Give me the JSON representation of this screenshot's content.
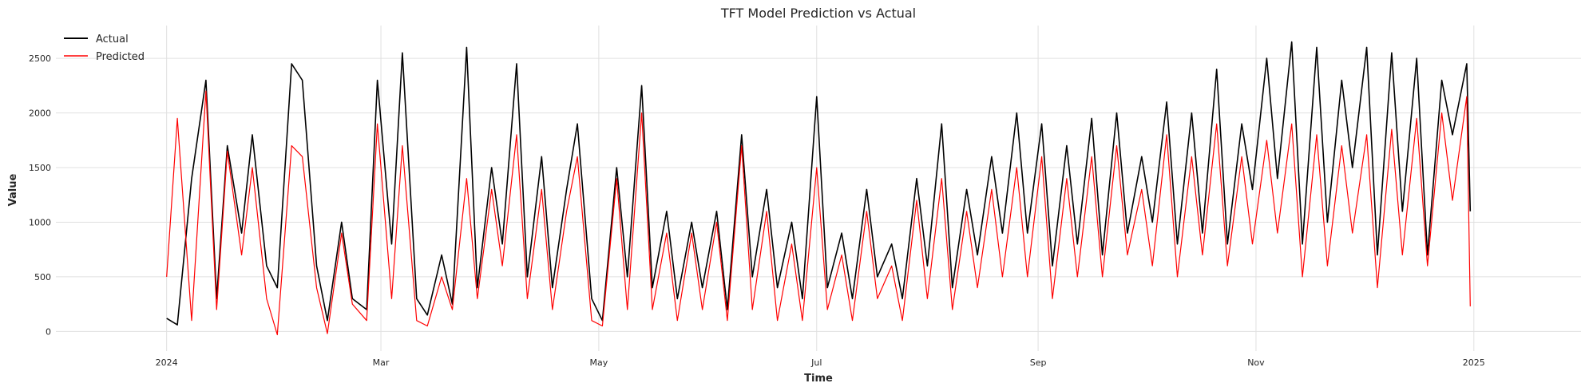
{
  "chart_data": {
    "type": "line",
    "title": "TFT Model Prediction vs Actual",
    "xlabel": "Time",
    "ylabel": "Value",
    "xlim": [
      "2023-12-01",
      "2025-01-31"
    ],
    "ylim": [
      -180,
      2800
    ],
    "grid": true,
    "legend_position": "top-left",
    "x_ticks": [
      {
        "date": "2024-01-01",
        "label": "2024"
      },
      {
        "date": "2024-03-01",
        "label": "Mar"
      },
      {
        "date": "2024-05-01",
        "label": "May"
      },
      {
        "date": "2024-07-01",
        "label": "Jul"
      },
      {
        "date": "2024-09-01",
        "label": "Sep"
      },
      {
        "date": "2024-11-01",
        "label": "Nov"
      },
      {
        "date": "2025-01-01",
        "label": "2025"
      }
    ],
    "y_ticks": [
      0,
      500,
      1000,
      1500,
      2000,
      2500
    ],
    "series": [
      {
        "name": "Actual",
        "color": "#000000",
        "x": [
          "2024-01-01",
          "2024-01-04",
          "2024-01-08",
          "2024-01-12",
          "2024-01-15",
          "2024-01-18",
          "2024-01-22",
          "2024-01-25",
          "2024-01-29",
          "2024-02-01",
          "2024-02-05",
          "2024-02-08",
          "2024-02-12",
          "2024-02-15",
          "2024-02-19",
          "2024-02-22",
          "2024-02-26",
          "2024-02-29",
          "2024-03-04",
          "2024-03-07",
          "2024-03-11",
          "2024-03-14",
          "2024-03-18",
          "2024-03-21",
          "2024-03-25",
          "2024-03-28",
          "2024-04-01",
          "2024-04-04",
          "2024-04-08",
          "2024-04-11",
          "2024-04-15",
          "2024-04-18",
          "2024-04-22",
          "2024-04-25",
          "2024-04-29",
          "2024-05-02",
          "2024-05-06",
          "2024-05-09",
          "2024-05-13",
          "2024-05-16",
          "2024-05-20",
          "2024-05-23",
          "2024-05-27",
          "2024-05-30",
          "2024-06-03",
          "2024-06-06",
          "2024-06-10",
          "2024-06-13",
          "2024-06-17",
          "2024-06-20",
          "2024-06-24",
          "2024-06-27",
          "2024-07-01",
          "2024-07-04",
          "2024-07-08",
          "2024-07-11",
          "2024-07-15",
          "2024-07-18",
          "2024-07-22",
          "2024-07-25",
          "2024-07-29",
          "2024-08-01",
          "2024-08-05",
          "2024-08-08",
          "2024-08-12",
          "2024-08-15",
          "2024-08-19",
          "2024-08-22",
          "2024-08-26",
          "2024-08-29",
          "2024-09-02",
          "2024-09-05",
          "2024-09-09",
          "2024-09-12",
          "2024-09-16",
          "2024-09-19",
          "2024-09-23",
          "2024-09-26",
          "2024-09-30",
          "2024-10-03",
          "2024-10-07",
          "2024-10-10",
          "2024-10-14",
          "2024-10-17",
          "2024-10-21",
          "2024-10-24",
          "2024-10-28",
          "2024-10-31",
          "2024-11-04",
          "2024-11-07",
          "2024-11-11",
          "2024-11-14",
          "2024-11-18",
          "2024-11-21",
          "2024-11-25",
          "2024-11-28",
          "2024-12-02",
          "2024-12-05",
          "2024-12-09",
          "2024-12-12",
          "2024-12-16",
          "2024-12-19",
          "2024-12-23",
          "2024-12-26",
          "2024-12-30",
          "2024-12-31"
        ],
        "y": [
          120,
          60,
          1400,
          2300,
          300,
          1700,
          900,
          1800,
          600,
          400,
          2450,
          2300,
          600,
          100,
          1000,
          300,
          200,
          2300,
          800,
          2550,
          300,
          150,
          700,
          250,
          2600,
          400,
          1500,
          800,
          2450,
          500,
          1600,
          400,
          1300,
          1900,
          300,
          100,
          1500,
          500,
          2250,
          400,
          1100,
          300,
          1000,
          400,
          1100,
          200,
          1800,
          500,
          1300,
          400,
          1000,
          300,
          2150,
          400,
          900,
          300,
          1300,
          500,
          800,
          300,
          1400,
          600,
          1900,
          400,
          1300,
          700,
          1600,
          900,
          2000,
          900,
          1900,
          600,
          1700,
          800,
          1950,
          700,
          2000,
          900,
          1600,
          1000,
          2100,
          800,
          2000,
          900,
          2400,
          800,
          1900,
          1300,
          2500,
          1400,
          2650,
          800,
          2600,
          1000,
          2300,
          1500,
          2600,
          700,
          2550,
          1100,
          2500,
          700,
          2300,
          1800,
          2450,
          1100
        ],
        "line_width": 1.6
      },
      {
        "name": "Predicted",
        "color": "#ff0000",
        "x": [
          "2024-01-01",
          "2024-01-04",
          "2024-01-08",
          "2024-01-12",
          "2024-01-15",
          "2024-01-18",
          "2024-01-22",
          "2024-01-25",
          "2024-01-29",
          "2024-02-01",
          "2024-02-05",
          "2024-02-08",
          "2024-02-12",
          "2024-02-15",
          "2024-02-19",
          "2024-02-22",
          "2024-02-26",
          "2024-02-29",
          "2024-03-04",
          "2024-03-07",
          "2024-03-11",
          "2024-03-14",
          "2024-03-18",
          "2024-03-21",
          "2024-03-25",
          "2024-03-28",
          "2024-04-01",
          "2024-04-04",
          "2024-04-08",
          "2024-04-11",
          "2024-04-15",
          "2024-04-18",
          "2024-04-22",
          "2024-04-25",
          "2024-04-29",
          "2024-05-02",
          "2024-05-06",
          "2024-05-09",
          "2024-05-13",
          "2024-05-16",
          "2024-05-20",
          "2024-05-23",
          "2024-05-27",
          "2024-05-30",
          "2024-06-03",
          "2024-06-06",
          "2024-06-10",
          "2024-06-13",
          "2024-06-17",
          "2024-06-20",
          "2024-06-24",
          "2024-06-27",
          "2024-07-01",
          "2024-07-04",
          "2024-07-08",
          "2024-07-11",
          "2024-07-15",
          "2024-07-18",
          "2024-07-22",
          "2024-07-25",
          "2024-07-29",
          "2024-08-01",
          "2024-08-05",
          "2024-08-08",
          "2024-08-12",
          "2024-08-15",
          "2024-08-19",
          "2024-08-22",
          "2024-08-26",
          "2024-08-29",
          "2024-09-02",
          "2024-09-05",
          "2024-09-09",
          "2024-09-12",
          "2024-09-16",
          "2024-09-19",
          "2024-09-23",
          "2024-09-26",
          "2024-09-30",
          "2024-10-03",
          "2024-10-07",
          "2024-10-10",
          "2024-10-14",
          "2024-10-17",
          "2024-10-21",
          "2024-10-24",
          "2024-10-28",
          "2024-10-31",
          "2024-11-04",
          "2024-11-07",
          "2024-11-11",
          "2024-11-14",
          "2024-11-18",
          "2024-11-21",
          "2024-11-25",
          "2024-11-28",
          "2024-12-02",
          "2024-12-05",
          "2024-12-09",
          "2024-12-12",
          "2024-12-16",
          "2024-12-19",
          "2024-12-23",
          "2024-12-26",
          "2024-12-30",
          "2024-12-31"
        ],
        "y": [
          500,
          1950,
          100,
          2200,
          200,
          1650,
          700,
          1500,
          300,
          -30,
          1700,
          1600,
          400,
          -20,
          900,
          250,
          100,
          1900,
          300,
          1700,
          100,
          50,
          500,
          200,
          1400,
          300,
          1300,
          600,
          1800,
          300,
          1300,
          200,
          1100,
          1600,
          100,
          50,
          1400,
          200,
          2000,
          200,
          900,
          100,
          900,
          200,
          1000,
          100,
          1700,
          200,
          1100,
          100,
          800,
          100,
          1500,
          200,
          700,
          100,
          1100,
          300,
          600,
          100,
          1200,
          300,
          1400,
          200,
          1100,
          400,
          1300,
          500,
          1500,
          500,
          1600,
          300,
          1400,
          500,
          1600,
          500,
          1700,
          700,
          1300,
          600,
          1800,
          500,
          1600,
          700,
          1900,
          600,
          1600,
          800,
          1750,
          900,
          1900,
          500,
          1800,
          600,
          1700,
          900,
          1800,
          400,
          1850,
          700,
          1950,
          600,
          2000,
          1200,
          2150,
          230
        ],
        "line_width": 1.2
      }
    ]
  }
}
